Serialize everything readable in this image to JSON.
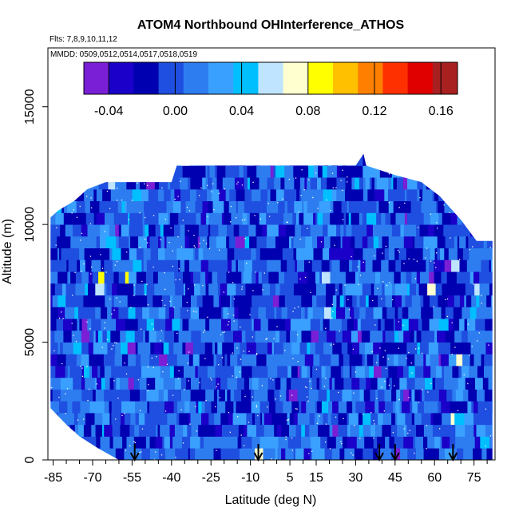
{
  "chart_data": {
    "type": "heatmap",
    "title": "ATOM4 Northbound OHInterference_ATHOS",
    "subtitle_flights": "Flts: 7,8,9,10,11,12",
    "subtitle_dates": "MMDD: 0509,0512,0514,0517,0518,0519",
    "xlabel": "Latitude (deg N)",
    "ylabel": "Altitude (m)",
    "xlim": [
      -87,
      83
    ],
    "ylim": [
      0,
      17500
    ],
    "x_ticks": [
      -85,
      -70,
      -55,
      -40,
      -25,
      -10,
      5,
      15,
      30,
      45,
      60,
      75
    ],
    "y_ticks": [
      0,
      5000,
      10000,
      15000
    ],
    "colorbar": {
      "min": -0.055,
      "max": 0.17,
      "ticks": [
        -0.04,
        0.0,
        0.04,
        0.08,
        0.12,
        0.16
      ],
      "tick_labels": [
        "-0.04",
        "0.00",
        "0.04",
        "0.08",
        "0.12",
        "0.16"
      ],
      "colors": [
        "#7a1fd6",
        "#1a00c8",
        "#0000b0",
        "#1f4fe0",
        "#2d7df0",
        "#3aa0ff",
        "#00bfff",
        "#bfe4ff",
        "#ffffd0",
        "#ffff00",
        "#ffc000",
        "#ff8000",
        "#ff3000",
        "#e00000",
        "#a82020"
      ]
    },
    "altitude_envelope": [
      {
        "lat": -86,
        "top": 10300
      },
      {
        "lat": -83,
        "top": 10600
      },
      {
        "lat": -77,
        "top": 11000
      },
      {
        "lat": -72,
        "top": 11500
      },
      {
        "lat": -65,
        "top": 11800
      },
      {
        "lat": -40,
        "top": 11800
      },
      {
        "lat": -38,
        "top": 12500
      },
      {
        "lat": 30,
        "top": 12500
      },
      {
        "lat": 33,
        "top": 13000
      },
      {
        "lat": 34,
        "top": 12500
      },
      {
        "lat": 45,
        "top": 12100
      },
      {
        "lat": 55,
        "top": 11800
      },
      {
        "lat": 62,
        "top": 11200
      },
      {
        "lat": 70,
        "top": 10200
      },
      {
        "lat": 76,
        "top": 9300
      },
      {
        "lat": 82,
        "top": 9300
      }
    ],
    "bottom_envelope": [
      {
        "lat": -86,
        "bottom": 2200
      },
      {
        "lat": -80,
        "bottom": 1500
      },
      {
        "lat": -75,
        "bottom": 1000
      },
      {
        "lat": -68,
        "bottom": 500
      },
      {
        "lat": -60,
        "bottom": 0
      },
      {
        "lat": 82,
        "bottom": 0
      }
    ],
    "profile_markers_lat": [
      -54,
      -7,
      39,
      45,
      67
    ]
  }
}
